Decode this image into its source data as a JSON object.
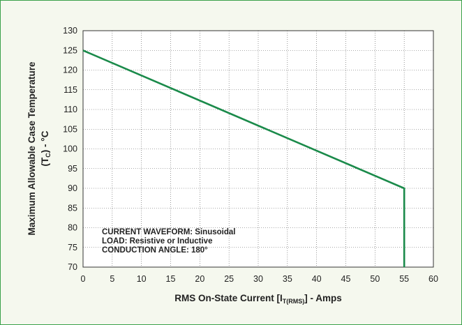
{
  "chart_data": {
    "type": "line",
    "title": "",
    "xlabel": {
      "prefix": "RMS On-State Current [I",
      "subscript": "T(RMS)",
      "suffix": "] - Amps"
    },
    "ylabel": {
      "line1": "Maximum Allowable Case Temperature",
      "line2_prefix": "(T",
      "line2_subscript": "C",
      "line2_suffix": ") - °C"
    },
    "xlim": [
      0,
      60
    ],
    "ylim": [
      70,
      130
    ],
    "xticks": [
      "0",
      "5",
      "10",
      "15",
      "20",
      "25",
      "30",
      "35",
      "40",
      "45",
      "50",
      "55",
      "60"
    ],
    "yticks": [
      "70",
      "75",
      "80",
      "85",
      "90",
      "95",
      "100",
      "105",
      "110",
      "115",
      "120",
      "125",
      "130"
    ],
    "grid": true,
    "series": [
      {
        "x": [
          0,
          55,
          55
        ],
        "y": [
          125,
          90,
          70
        ]
      }
    ],
    "annotations": [
      "CURRENT WAVEFORM: Sinusoidal",
      "LOAD: Resistive or Inductive",
      "CONDUCTION ANGLE: 180°"
    ]
  },
  "colors": {
    "frame_border": "#3aa14a",
    "background": "#f5f8ee",
    "plot_background": "#ffffff",
    "series_line": "#1a8a4a",
    "grid": "#555555"
  }
}
